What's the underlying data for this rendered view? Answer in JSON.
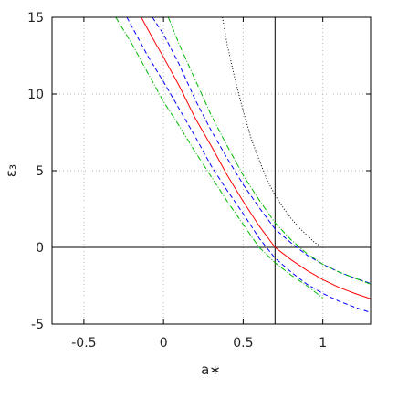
{
  "chart_data": {
    "type": "line",
    "title": "",
    "xlabel": "a∗",
    "ylabel": "ε₃",
    "xlim": [
      -0.7,
      1.3
    ],
    "ylim": [
      -5,
      15
    ],
    "grid": true,
    "grid_style": "dotted",
    "xticks": [
      -0.5,
      0,
      0.5,
      1
    ],
    "xtick_labels": [
      "-0.5",
      "0",
      "0.5",
      "1"
    ],
    "yticks": [
      -5,
      0,
      5,
      10,
      15
    ],
    "ytick_labels": [
      "-5",
      "0",
      "5",
      "10",
      "15"
    ],
    "reference_lines": [
      {
        "orientation": "horizontal",
        "value": 0,
        "color": "#000000"
      },
      {
        "orientation": "vertical",
        "value": 0.7,
        "color": "#000000"
      }
    ],
    "series": [
      {
        "color": "#ff0000",
        "dash": "solid",
        "x": [
          -0.14,
          -0.05,
          0.0,
          0.1,
          0.2,
          0.3,
          0.4,
          0.5,
          0.6,
          0.7,
          0.8,
          0.9,
          1.0,
          1.1,
          1.2,
          1.3
        ],
        "y": [
          15.0,
          13.3,
          12.4,
          10.5,
          8.4,
          6.6,
          4.7,
          3.0,
          1.4,
          0.0,
          -0.8,
          -1.5,
          -2.1,
          -2.6,
          -3.0,
          -3.35
        ]
      },
      {
        "color": "#0000ff",
        "dash": "dashed",
        "x": [
          -0.23,
          -0.1,
          0.0,
          0.1,
          0.2,
          0.3,
          0.4,
          0.5,
          0.6,
          0.7,
          0.8,
          0.9,
          1.0,
          1.1,
          1.2,
          1.3
        ],
        "y": [
          15.0,
          12.5,
          10.8,
          9.0,
          7.2,
          5.3,
          3.7,
          2.2,
          0.6,
          -0.7,
          -1.6,
          -2.4,
          -3.0,
          -3.5,
          -3.9,
          -4.25
        ]
      },
      {
        "color": "#0000ff",
        "dash": "dashed",
        "x": [
          -0.07,
          0.0,
          0.1,
          0.2,
          0.3,
          0.4,
          0.5,
          0.6,
          0.7,
          0.8,
          0.9,
          1.0,
          1.1,
          1.2,
          1.3
        ],
        "y": [
          15.0,
          13.9,
          11.9,
          9.6,
          7.6,
          5.8,
          4.1,
          2.6,
          1.2,
          0.3,
          -0.5,
          -1.1,
          -1.6,
          -2.0,
          -2.35
        ]
      },
      {
        "color": "#00bb00",
        "dash": "dashdot",
        "x": [
          -0.3,
          -0.2,
          -0.1,
          0.0,
          0.1,
          0.2,
          0.3,
          0.4,
          0.5,
          0.6,
          0.7,
          0.8,
          0.9,
          1.0
        ],
        "y": [
          15.0,
          13.3,
          11.4,
          9.5,
          7.9,
          6.2,
          4.6,
          3.0,
          1.5,
          0.0,
          -1.0,
          -1.8,
          -2.5,
          -3.3
        ]
      },
      {
        "color": "#00bb00",
        "dash": "dashdot",
        "x": [
          0.03,
          0.1,
          0.2,
          0.3,
          0.4,
          0.5,
          0.6,
          0.7,
          0.8,
          0.9,
          1.0,
          1.1,
          1.2,
          1.3
        ],
        "y": [
          15.0,
          13.2,
          10.9,
          8.6,
          6.6,
          4.7,
          3.1,
          1.6,
          0.5,
          -0.4,
          -1.1,
          -1.6,
          -2.0,
          -2.4
        ]
      },
      {
        "color": "#000000",
        "dash": "dotted",
        "x": [
          0.37,
          0.4,
          0.45,
          0.5,
          0.55,
          0.6,
          0.65,
          0.7,
          0.75,
          0.8,
          0.85,
          0.9,
          0.95,
          1.0
        ],
        "y": [
          15.0,
          13.2,
          10.9,
          8.9,
          7.1,
          5.7,
          4.4,
          3.4,
          2.6,
          1.9,
          1.3,
          0.8,
          0.3,
          0.0
        ]
      }
    ]
  }
}
